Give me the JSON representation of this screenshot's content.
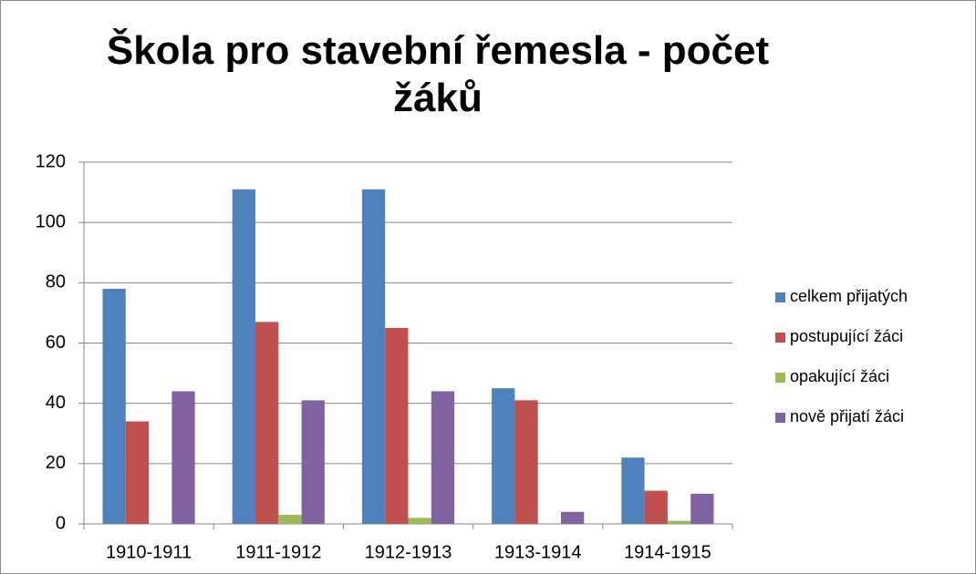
{
  "chart_data": {
    "type": "bar",
    "title": "Škola pro stavební řemesla - počet žáků",
    "categories": [
      "1910-1911",
      "1911-1912",
      "1912-1913",
      "1913-1914",
      "1914-1915"
    ],
    "series": [
      {
        "name": "celkem přijatých",
        "color": "#4F81BD",
        "values": [
          78,
          111,
          111,
          45,
          22
        ]
      },
      {
        "name": "postupující žáci",
        "color": "#C0504D",
        "values": [
          34,
          67,
          65,
          41,
          11
        ]
      },
      {
        "name": "opakující žáci",
        "color": "#9BBB59",
        "values": [
          0,
          3,
          2,
          0,
          1
        ]
      },
      {
        "name": "nově přijatí žáci",
        "color": "#8064A2",
        "values": [
          44,
          41,
          44,
          4,
          10
        ]
      }
    ],
    "ylim": [
      0,
      120
    ],
    "yticks": [
      0,
      20,
      40,
      60,
      80,
      100,
      120
    ],
    "grid": true,
    "legend": "right"
  }
}
